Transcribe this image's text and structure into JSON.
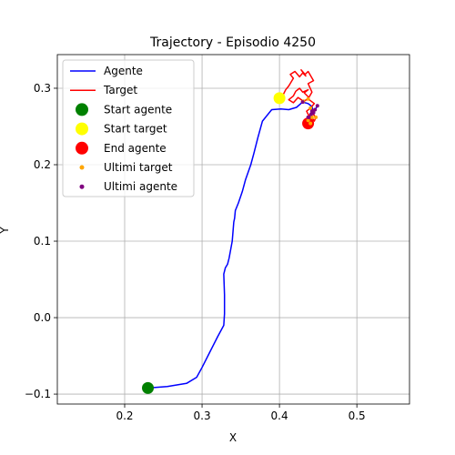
{
  "chart_data": {
    "type": "scatter",
    "title": "Trajectory - Episodio 4250",
    "xlabel": "X",
    "ylabel": "Y",
    "xlim": [
      0.113,
      0.568
    ],
    "ylim": [
      -0.113,
      0.344
    ],
    "xticks": [
      0.2,
      0.3,
      0.4,
      0.5
    ],
    "yticks": [
      -0.1,
      0.0,
      0.1,
      0.2,
      0.3
    ],
    "xtick_labels": [
      "0.2",
      "0.3",
      "0.4",
      "0.5"
    ],
    "ytick_labels": [
      "−0.1",
      "0.0",
      "0.1",
      "0.2",
      "0.3"
    ],
    "grid": true,
    "legend_position": "top-left",
    "series": [
      {
        "name": "Agente",
        "kind": "line",
        "color": "#0000ff",
        "x": [
          0.23,
          0.255,
          0.28,
          0.293,
          0.3,
          0.31,
          0.32,
          0.328,
          0.329,
          0.329,
          0.328,
          0.33,
          0.333,
          0.335,
          0.339,
          0.341,
          0.342,
          0.343,
          0.347,
          0.352,
          0.356,
          0.363,
          0.367,
          0.372,
          0.378,
          0.39,
          0.402,
          0.412,
          0.422,
          0.43,
          0.437,
          0.442,
          0.443,
          0.44,
          0.437,
          0.442,
          0.446,
          0.441,
          0.438,
          0.444,
          0.449
        ],
        "y": [
          -0.092,
          -0.09,
          -0.086,
          -0.078,
          -0.065,
          -0.045,
          -0.025,
          -0.01,
          0.005,
          0.03,
          0.057,
          0.065,
          0.07,
          0.078,
          0.1,
          0.125,
          0.13,
          0.14,
          0.15,
          0.165,
          0.18,
          0.2,
          0.215,
          0.235,
          0.257,
          0.272,
          0.273,
          0.272,
          0.275,
          0.282,
          0.28,
          0.276,
          0.272,
          0.266,
          0.262,
          0.27,
          0.272,
          0.266,
          0.262,
          0.268,
          0.277
        ]
      },
      {
        "name": "Target",
        "kind": "line",
        "color": "#ff0000",
        "x": [
          0.4,
          0.405,
          0.408,
          0.412,
          0.418,
          0.414,
          0.42,
          0.426,
          0.43,
          0.434,
          0.428,
          0.433,
          0.437,
          0.444,
          0.437,
          0.442,
          0.438,
          0.432,
          0.437,
          0.43,
          0.426,
          0.421,
          0.418,
          0.412,
          0.418,
          0.424,
          0.431,
          0.437,
          0.445,
          0.44,
          0.435,
          0.438,
          0.442,
          0.447,
          0.445,
          0.442,
          0.438,
          0.44
        ],
        "y": [
          0.287,
          0.292,
          0.298,
          0.303,
          0.313,
          0.318,
          0.322,
          0.315,
          0.32,
          0.316,
          0.324,
          0.318,
          0.322,
          0.31,
          0.306,
          0.295,
          0.288,
          0.294,
          0.298,
          0.295,
          0.3,
          0.296,
          0.29,
          0.285,
          0.281,
          0.288,
          0.283,
          0.286,
          0.28,
          0.274,
          0.27,
          0.264,
          0.268,
          0.262,
          0.257,
          0.262,
          0.258,
          0.254
        ]
      },
      {
        "name": "Start agente",
        "kind": "point",
        "color": "#008000",
        "size": 13,
        "x": [
          0.23
        ],
        "y": [
          -0.092
        ]
      },
      {
        "name": "Start target",
        "kind": "point",
        "color": "#ffff00",
        "size": 13,
        "x": [
          0.4
        ],
        "y": [
          0.287
        ]
      },
      {
        "name": "End agente",
        "kind": "point",
        "color": "#ff0000",
        "size": 13,
        "x": [
          0.437
        ],
        "y": [
          0.254
        ]
      },
      {
        "name": "Ultimi target",
        "kind": "points",
        "color": "#ffa500",
        "size": 4,
        "x": [
          0.431,
          0.437,
          0.44,
          0.444,
          0.447,
          0.442,
          0.437,
          0.44
        ],
        "y": [
          0.283,
          0.286,
          0.274,
          0.27,
          0.262,
          0.262,
          0.258,
          0.254
        ]
      },
      {
        "name": "Ultimi agente",
        "kind": "points",
        "color": "#800080",
        "size": 4,
        "x": [
          0.43,
          0.437,
          0.442,
          0.446,
          0.441,
          0.438,
          0.444,
          0.449
        ],
        "y": [
          0.282,
          0.262,
          0.27,
          0.272,
          0.266,
          0.262,
          0.268,
          0.277
        ]
      }
    ]
  }
}
